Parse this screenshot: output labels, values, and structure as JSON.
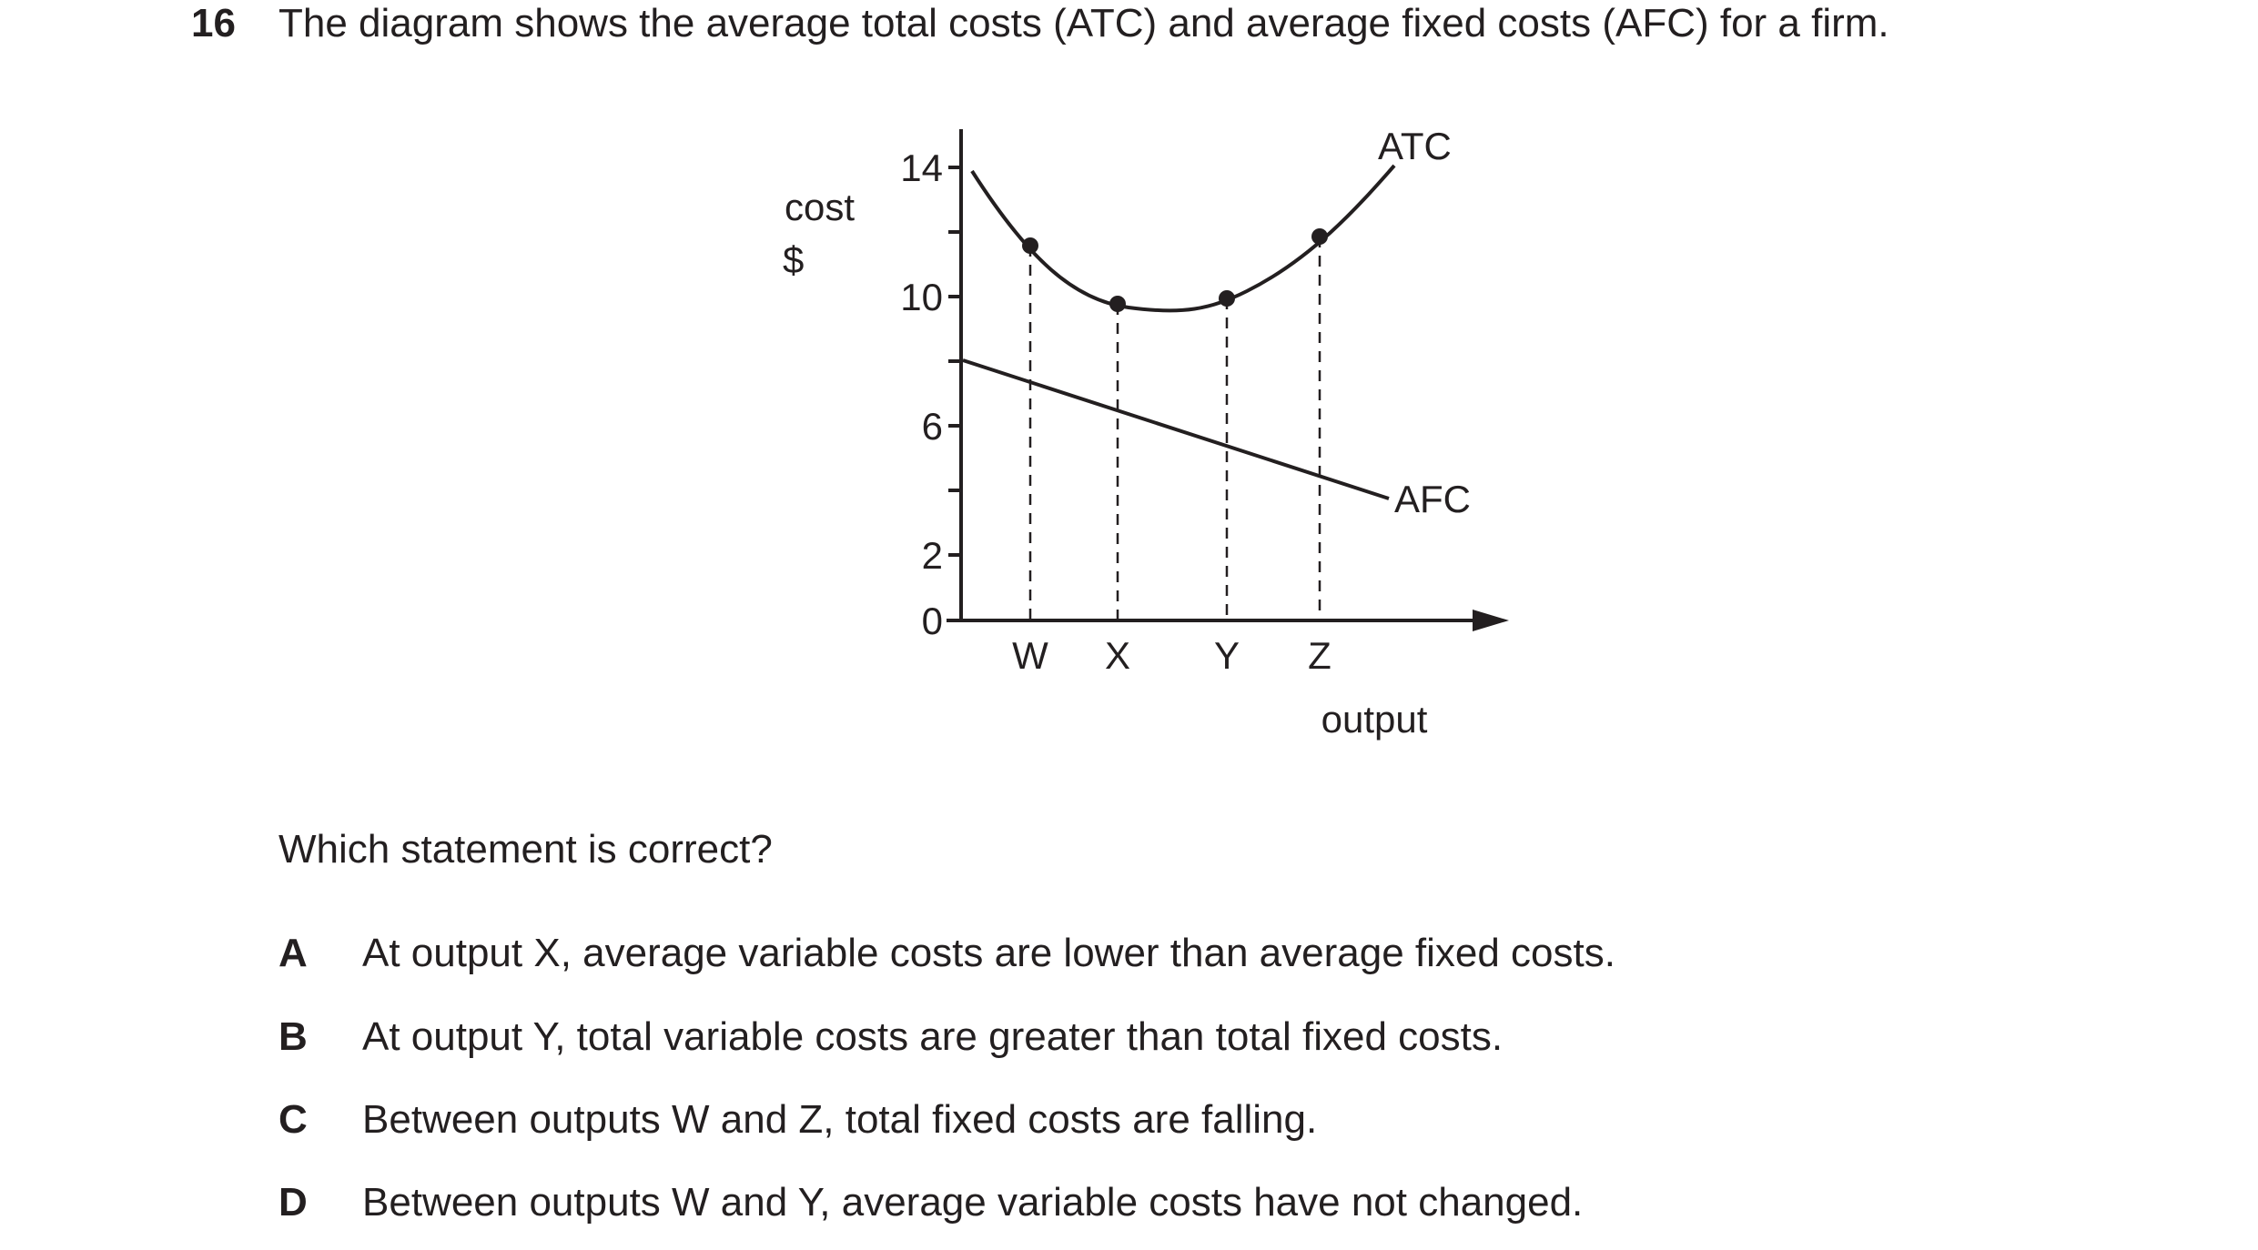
{
  "question": {
    "number": "16",
    "text": "The diagram shows the average total costs (ATC) and average fixed costs (AFC) for a firm."
  },
  "diagram": {
    "y_label_line1": "cost",
    "y_label_line2": "$",
    "x_label": "output",
    "y_ticks": [
      "14",
      "10",
      "6",
      "2",
      "0"
    ],
    "x_ticks": [
      "W",
      "X",
      "Y",
      "Z"
    ],
    "atc_label": "ATC",
    "afc_label": "AFC"
  },
  "prompt": "Which statement is correct?",
  "options": [
    {
      "letter": "A",
      "text": "At output X, average variable costs are lower than average fixed costs."
    },
    {
      "letter": "B",
      "text": "At output Y, total variable costs are greater than total fixed costs."
    },
    {
      "letter": "C",
      "text": "Between outputs W and Z, total fixed costs are falling."
    },
    {
      "letter": "D",
      "text": "Between outputs W and Y, average variable costs have not changed."
    }
  ]
}
